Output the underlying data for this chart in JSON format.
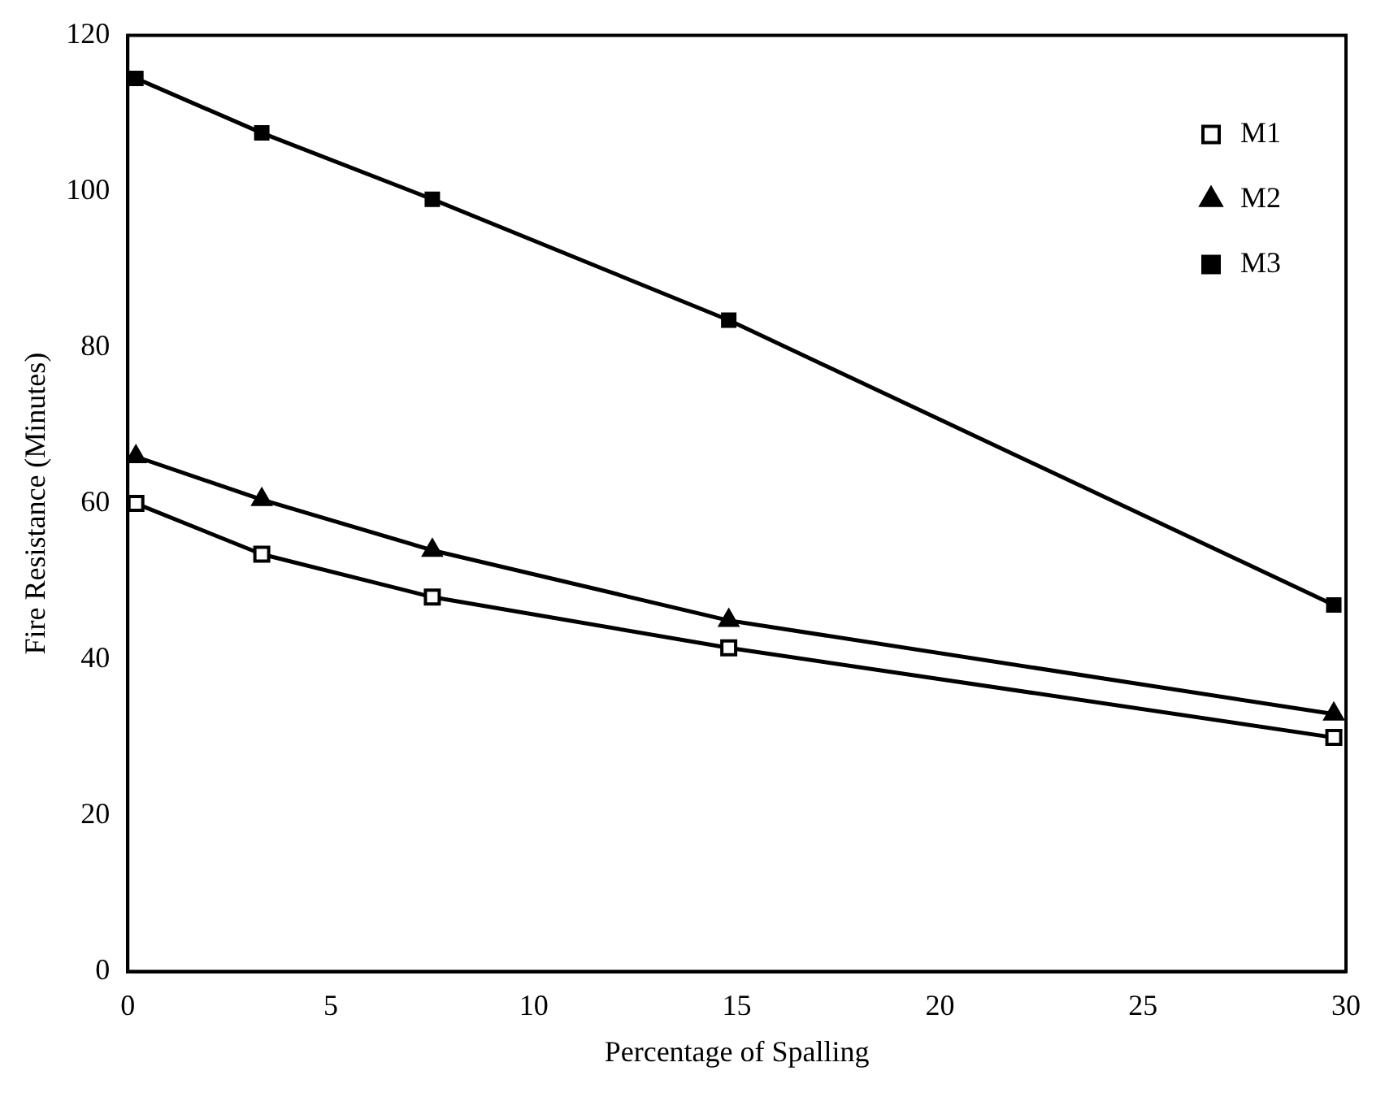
{
  "chart_data": {
    "type": "line",
    "xlabel": "Percentage of Spalling",
    "ylabel": "Fire Resistance (Minutes)",
    "x": [
      0.2,
      3.3,
      7.5,
      14.8,
      29.7
    ],
    "series": [
      {
        "name": "M1",
        "color": "#000000",
        "marker": "square",
        "values": [
          60,
          53.5,
          48,
          41.5,
          30
        ]
      },
      {
        "name": "M2",
        "color": "#000000",
        "marker": "triangle",
        "values": [
          66,
          60.5,
          54,
          45,
          33
        ]
      },
      {
        "name": "M3",
        "color": "#000000",
        "marker": "square",
        "values": [
          114.5,
          107.5,
          99,
          83.5,
          47
        ]
      }
    ],
    "xlim": [
      0,
      30
    ],
    "xticks": [
      0,
      5,
      10,
      15,
      20,
      25,
      30
    ],
    "ylim": [
      0,
      120
    ],
    "yticks": [
      0,
      20,
      40,
      60,
      80,
      100,
      120
    ],
    "grid": false,
    "legend": "top right",
    "line_style": "solid"
  }
}
